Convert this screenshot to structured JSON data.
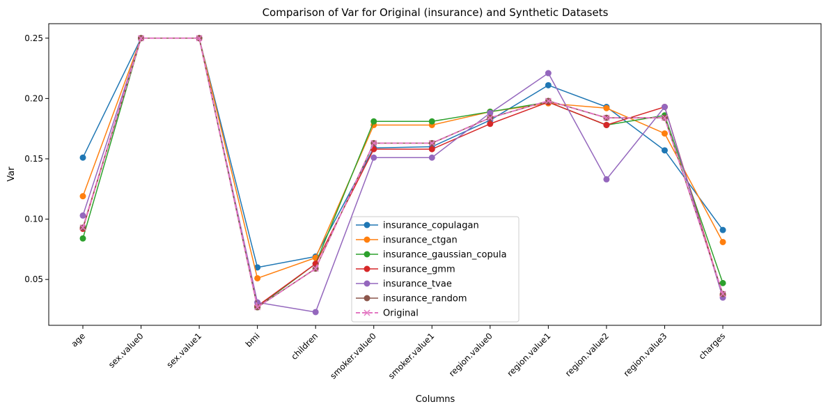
{
  "chart_data": {
    "type": "line",
    "title": "Comparison of Var for Original (insurance) and Synthetic Datasets",
    "xlabel": "Columns",
    "ylabel": "Var",
    "categories": [
      "age",
      "sex.value0",
      "sex.value1",
      "bmi",
      "children",
      "smoker.value0",
      "smoker.value1",
      "region.value0",
      "region.value1",
      "region.value2",
      "region.value3",
      "charges"
    ],
    "ylim": [
      0.012,
      0.262
    ],
    "yticks": [
      "0.05",
      "0.10",
      "0.15",
      "0.20",
      "0.25"
    ],
    "grid": false,
    "legend_position": "lower center",
    "series": [
      {
        "name": "insurance_copulagan",
        "color": "#1f77b4",
        "marker": "circle",
        "values": [
          0.151,
          0.25,
          0.25,
          0.06,
          0.069,
          0.159,
          0.16,
          0.182,
          0.211,
          0.193,
          0.157,
          0.091
        ]
      },
      {
        "name": "insurance_ctgan",
        "color": "#ff7f0e",
        "marker": "circle",
        "values": [
          0.119,
          0.25,
          0.25,
          0.051,
          0.068,
          0.178,
          0.178,
          0.189,
          0.196,
          0.192,
          0.171,
          0.081
        ]
      },
      {
        "name": "insurance_gaussian_copula",
        "color": "#2ca02c",
        "marker": "circle",
        "values": [
          0.084,
          0.25,
          0.25,
          0.027,
          0.063,
          0.181,
          0.181,
          0.189,
          0.197,
          0.178,
          0.186,
          0.047
        ]
      },
      {
        "name": "insurance_gmm",
        "color": "#d62728",
        "marker": "circle",
        "values": [
          0.092,
          0.25,
          0.25,
          0.028,
          0.063,
          0.158,
          0.158,
          0.179,
          0.197,
          0.178,
          0.193,
          0.037
        ]
      },
      {
        "name": "insurance_tvae",
        "color": "#9467bd",
        "marker": "circle",
        "values": [
          0.103,
          0.25,
          0.25,
          0.031,
          0.023,
          0.151,
          0.151,
          0.188,
          0.221,
          0.133,
          0.193,
          0.035
        ]
      },
      {
        "name": "insurance_random",
        "color": "#8c564b",
        "marker": "circle",
        "values": [
          0.093,
          0.25,
          0.25,
          0.027,
          0.059,
          0.163,
          0.163,
          0.184,
          0.198,
          0.184,
          0.184,
          0.038
        ]
      },
      {
        "name": "Original",
        "color": "#e377c2",
        "marker": "x",
        "dashed": true,
        "values": [
          0.093,
          0.25,
          0.25,
          0.027,
          0.059,
          0.163,
          0.163,
          0.184,
          0.198,
          0.184,
          0.184,
          0.038
        ]
      }
    ]
  }
}
